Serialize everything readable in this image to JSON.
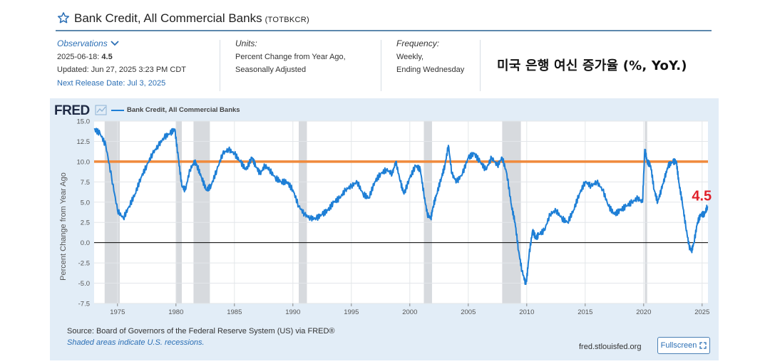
{
  "header": {
    "title": "Bank Credit, All Commercial Banks",
    "series_code": "(TOTBKCR)"
  },
  "meta": {
    "observations_label": "Observations",
    "observation_date": "2025-06-18:",
    "observation_value": "4.5",
    "updated": "Updated: Jun 27, 2025 3:23 PM CDT",
    "next_release": "Next Release Date: Jul 3, 2025",
    "units_label": "Units:",
    "units_line1": "Percent Change from Year Ago,",
    "units_line2": "Seasonally Adjusted",
    "frequency_label": "Frequency:",
    "frequency_line1": "Weekly,",
    "frequency_line2": "Ending Wednesday"
  },
  "annotation": {
    "korean_title": "미국 은행 여신 증가율 (%, YoY.)",
    "last_value_label": "4.5",
    "reference_line_value": 10.0,
    "reference_line_color": "#f08a3c",
    "last_value_color": "#e0202a"
  },
  "footer": {
    "source": "Source: Board of Governors of the Federal Reserve System (US) via FRED®",
    "shaded_note": "Shaded areas indicate U.S. recessions.",
    "site": "fred.stlouisfed.org",
    "fullscreen_label": "Fullscreen"
  },
  "colors": {
    "series": "#1e7fd6",
    "panel_bg": "#e2edf7",
    "recession": "#c9ced3",
    "accent": "#2b6fb5"
  },
  "chart_data": {
    "type": "line",
    "logo": "FRED",
    "legend_label": "Bank Credit, All Commercial Banks",
    "ylabel": "Percent Change from Year Ago",
    "xlabel": "",
    "ylim": [
      -7.5,
      15.0
    ],
    "xlim": [
      1973.0,
      2025.5
    ],
    "y_ticks": [
      15.0,
      12.5,
      10.0,
      7.5,
      5.0,
      2.5,
      0.0,
      -2.5,
      -5.0,
      -7.5
    ],
    "y_tick_labels": [
      "15.0",
      "12.5",
      "10.0",
      "7.5",
      "5.0",
      "2.5",
      "0.0",
      "-2.5",
      "-5.0",
      "-7.5"
    ],
    "x_ticks": [
      1975,
      1980,
      1985,
      1990,
      1995,
      2000,
      2005,
      2010,
      2015,
      2020,
      2025
    ],
    "x_tick_labels": [
      "1975",
      "1980",
      "1985",
      "1990",
      "1995",
      "2000",
      "2005",
      "2010",
      "2015",
      "2020",
      "2025"
    ],
    "grid": true,
    "legend_position": "top-left",
    "recessions": [
      [
        1973.9,
        1975.2
      ],
      [
        1980.0,
        1980.5
      ],
      [
        1981.5,
        1982.9
      ],
      [
        1990.5,
        1991.2
      ],
      [
        2001.2,
        2001.9
      ],
      [
        2007.9,
        2009.5
      ],
      [
        2020.1,
        2020.3
      ]
    ],
    "series": [
      {
        "name": "Bank Credit, All Commercial Banks",
        "x": [
          1973.0,
          1973.5,
          1974.0,
          1974.5,
          1975.0,
          1975.5,
          1976.0,
          1976.5,
          1977.0,
          1977.5,
          1978.0,
          1978.5,
          1979.0,
          1979.5,
          1979.9,
          1980.2,
          1980.5,
          1980.8,
          1981.2,
          1981.6,
          1981.8,
          1982.2,
          1982.6,
          1983.0,
          1983.5,
          1984.0,
          1984.5,
          1985.0,
          1985.5,
          1986.0,
          1986.5,
          1986.8,
          1987.2,
          1987.6,
          1988.0,
          1988.5,
          1989.0,
          1989.5,
          1990.0,
          1990.5,
          1991.0,
          1991.5,
          1992.0,
          1992.5,
          1993.0,
          1993.5,
          1994.0,
          1994.5,
          1995.0,
          1995.5,
          1996.0,
          1996.5,
          1997.0,
          1997.5,
          1998.0,
          1998.5,
          1998.8,
          1999.2,
          1999.5,
          2000.0,
          2000.5,
          2000.9,
          2001.2,
          2001.5,
          2001.8,
          2002.0,
          2002.3,
          2002.7,
          2003.0,
          2003.3,
          2003.6,
          2004.0,
          2004.5,
          2005.0,
          2005.5,
          2006.0,
          2006.5,
          2007.0,
          2007.5,
          2007.9,
          2008.3,
          2008.7,
          2009.0,
          2009.3,
          2009.6,
          2009.9,
          2010.0,
          2010.2,
          2010.5,
          2010.8,
          2011.0,
          2011.5,
          2012.0,
          2012.5,
          2013.0,
          2013.5,
          2014.0,
          2014.5,
          2015.0,
          2015.5,
          2016.0,
          2016.5,
          2017.0,
          2017.5,
          2018.0,
          2018.5,
          2019.0,
          2019.5,
          2019.9,
          2020.1,
          2020.3,
          2020.6,
          2020.9,
          2021.2,
          2021.5,
          2021.8,
          2022.1,
          2022.5,
          2022.8,
          2023.0,
          2023.3,
          2023.6,
          2023.9,
          2024.1,
          2024.3,
          2024.6,
          2024.9,
          2025.2,
          2025.46
        ],
        "values": [
          14.0,
          13.5,
          12.0,
          8.0,
          4.0,
          3.0,
          4.5,
          6.0,
          8.0,
          9.5,
          11.0,
          12.0,
          13.0,
          13.5,
          14.0,
          10.5,
          7.0,
          6.5,
          9.0,
          10.0,
          9.5,
          8.0,
          6.5,
          7.0,
          9.0,
          11.0,
          11.5,
          11.0,
          10.0,
          9.0,
          10.5,
          9.5,
          8.5,
          9.5,
          9.0,
          8.0,
          7.5,
          7.5,
          6.5,
          4.5,
          3.5,
          3.0,
          3.0,
          3.5,
          4.0,
          5.0,
          5.5,
          6.5,
          7.0,
          7.5,
          6.0,
          5.5,
          7.5,
          8.5,
          9.0,
          8.5,
          10.0,
          7.5,
          6.0,
          8.0,
          9.5,
          9.0,
          6.0,
          3.5,
          3.0,
          4.5,
          6.0,
          8.0,
          9.5,
          12.0,
          8.5,
          7.5,
          8.5,
          10.5,
          11.0,
          10.0,
          9.0,
          10.5,
          9.5,
          10.5,
          8.5,
          4.5,
          2.5,
          -1.0,
          -3.5,
          -5.0,
          -4.5,
          -1.5,
          1.5,
          0.5,
          1.0,
          1.5,
          3.5,
          4.0,
          3.0,
          2.5,
          4.0,
          6.0,
          7.5,
          7.0,
          7.5,
          6.5,
          4.5,
          3.5,
          4.0,
          4.5,
          5.0,
          5.5,
          5.0,
          11.5,
          10.0,
          9.5,
          6.5,
          5.0,
          6.5,
          8.0,
          9.5,
          10.0,
          10.0,
          7.5,
          5.0,
          2.0,
          -0.5,
          -1.0,
          0.0,
          2.5,
          3.5,
          3.5,
          4.5
        ]
      }
    ]
  }
}
